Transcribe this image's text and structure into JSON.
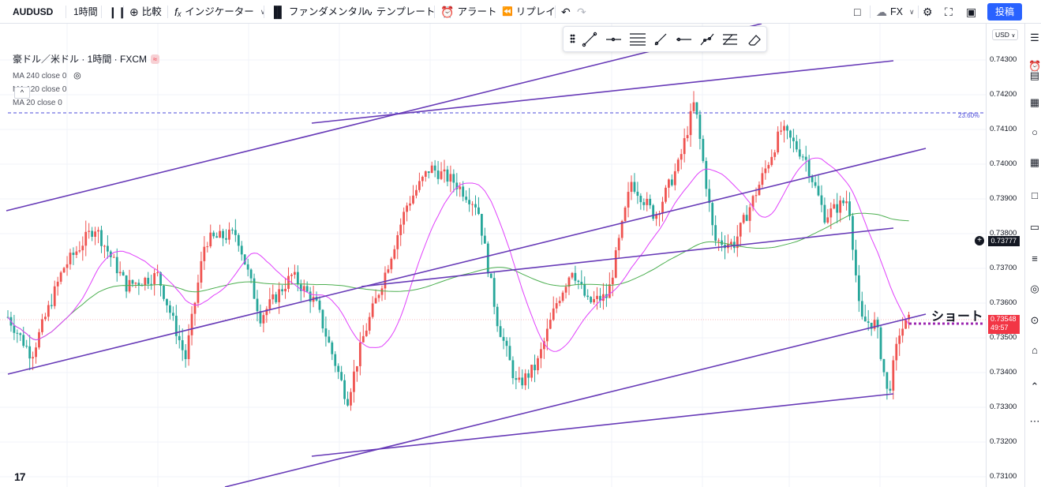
{
  "toolbar": {
    "symbol": "AUDUSD",
    "interval": "1時間",
    "compare": "比較",
    "indicators": "インジケーター",
    "fundamentals": "ファンダメンタル",
    "templates": "テンプレート",
    "alert": "アラート",
    "replay": "リプレイ",
    "layout_name": "FX",
    "post": "投稿"
  },
  "legend": {
    "title": "豪ドル／米ドル · 1時間 · FXCM",
    "ma240_label": "MA 240 close 0",
    "ma120_label": "MA 120 close 0",
    "ma20_label": "MA 20 close 0",
    "collapse": "^"
  },
  "price_scale": {
    "currency": "USD",
    "labels": [
      "0.74300",
      "0.74200",
      "0.74100",
      "0.74000",
      "0.73900",
      "0.73800",
      "0.73700",
      "0.73600",
      "0.73500",
      "0.73400",
      "0.73300",
      "0.73200",
      "0.73100"
    ],
    "crosshair_price": "0.73777",
    "last_price": "0.73548",
    "countdown": "49:57"
  },
  "annotations": {
    "fib_level": "23.60%",
    "short_text": "ショート"
  },
  "colors": {
    "up": "#ef5350",
    "down": "#26a69a",
    "ma20": "#e040fb",
    "ma120": "#4caf50",
    "trendline": "#673ab7",
    "accent": "#2962ff"
  },
  "icons": {
    "drawing_tools": [
      "grip-icon",
      "trend-line-icon",
      "horizontal-ray-icon",
      "parallel-channel-icon",
      "ray-icon",
      "horizontal-line-icon",
      "multi-point-line-icon",
      "fib-icon",
      "eraser-icon"
    ],
    "right_sidebar": [
      "watchlist-icon",
      "alarm-icon",
      "news-icon",
      "calendar-icon",
      "ideas-icon",
      "data-window-icon",
      "chat-icon",
      "notes-icon",
      "pulse-icon",
      "streams-icon",
      "alerts-icon",
      "expand-icon",
      "options-icon"
    ]
  }
}
